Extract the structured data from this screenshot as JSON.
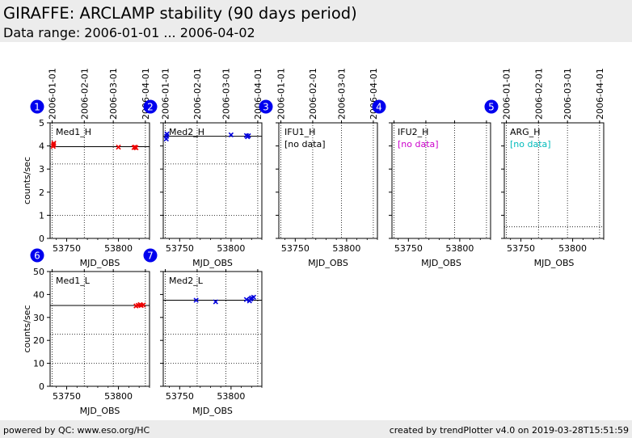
{
  "header": {
    "title": "GIRAFFE: ARCLAMP stability (90 days period)",
    "subtitle": "Data range: 2006-01-01 ... 2006-04-02"
  },
  "footer": {
    "left": "powered by QC: www.eso.org/HC",
    "right": "created by trendPlotter v4.0 on 2019-03-28T15:51:59"
  },
  "colors": {
    "header_bg": "#ececec",
    "badge": "#0000ee",
    "red": "#ee0000",
    "blue": "#0000dd",
    "magenta": "#cc00cc",
    "cyan": "#00bbbb"
  },
  "chart_data": [
    {
      "id": 1,
      "type": "scatter",
      "label": "Med1_H",
      "no_data": false,
      "color": "#ee0000",
      "xlim": [
        53734,
        53830
      ],
      "ylim": [
        0,
        5
      ],
      "xticks": [
        53750,
        53800
      ],
      "yticks": [
        0,
        1,
        2,
        3,
        4,
        5
      ],
      "ylabel": "counts/sec",
      "xlabel": "MJD_OBS",
      "date_ticks": [
        "2006-01-01",
        "2006-02-01",
        "2006-03-01",
        "2006-04-01"
      ],
      "reference_line": 3.97,
      "dotted_lines": [
        1.0,
        3.22
      ],
      "points": [
        [
          53737,
          3.98
        ],
        [
          53737.3,
          4.05
        ],
        [
          53737.6,
          4.12
        ],
        [
          53800,
          3.95
        ],
        [
          53815,
          3.93
        ],
        [
          53816,
          3.95
        ],
        [
          53817,
          3.92
        ]
      ]
    },
    {
      "id": 2,
      "type": "scatter",
      "label": "Med2_H",
      "no_data": false,
      "color": "#0000dd",
      "xlim": [
        53734,
        53830
      ],
      "ylim": [
        0,
        5
      ],
      "xticks": [
        53750,
        53800
      ],
      "yticks": [
        0,
        1,
        2,
        3,
        4,
        5
      ],
      "ylabel": "",
      "xlabel": "MJD_OBS",
      "date_ticks": [
        "2006-01-01",
        "2006-02-01",
        "2006-03-01",
        "2006-04-01"
      ],
      "reference_line": 4.42,
      "dotted_lines": [
        1.0,
        3.22
      ],
      "points": [
        [
          53737,
          4.3
        ],
        [
          53737.3,
          4.42
        ],
        [
          53737.6,
          4.52
        ],
        [
          53800,
          4.48
        ],
        [
          53815,
          4.45
        ],
        [
          53816,
          4.4
        ],
        [
          53817,
          4.44
        ]
      ]
    },
    {
      "id": 3,
      "type": "scatter",
      "label": "IFU1_H",
      "no_data": true,
      "no_data_text": "[no data]",
      "color": "#000000",
      "xlim": [
        53734,
        53830
      ],
      "ylim": [
        0,
        5
      ],
      "xticks": [
        53750,
        53800
      ],
      "yticks": [
        0,
        1,
        2,
        3,
        4,
        5
      ],
      "ylabel": "",
      "xlabel": "MJD_OBS",
      "date_ticks": [
        "2006-01-01",
        "2006-02-01",
        "2006-03-01",
        "2006-04-01"
      ],
      "reference_line": null,
      "dotted_lines": [],
      "points": []
    },
    {
      "id": 4,
      "type": "scatter",
      "label": "IFU2_H",
      "no_data": true,
      "no_data_text": "[no data]",
      "color": "#cc00cc",
      "xlim": [
        53734,
        53830
      ],
      "ylim": [
        0,
        5
      ],
      "xticks": [
        53750,
        53800
      ],
      "yticks": [
        0,
        1,
        2,
        3,
        4,
        5
      ],
      "ylabel": "",
      "xlabel": "MJD_OBS",
      "date_ticks": [],
      "reference_line": null,
      "dotted_lines": [],
      "points": []
    },
    {
      "id": 5,
      "type": "scatter",
      "label": "ARG_H",
      "no_data": true,
      "no_data_text": "[no data]",
      "color": "#00bbbb",
      "xlim": [
        53734,
        53830
      ],
      "ylim": [
        0,
        5
      ],
      "xticks": [
        53750,
        53800
      ],
      "yticks": [
        0,
        1,
        2,
        3,
        4,
        5
      ],
      "ylabel": "",
      "xlabel": "MJD_OBS",
      "date_ticks": [
        "2006-01-01",
        "2006-02-01",
        "2006-03-01",
        "2006-04-01"
      ],
      "reference_line": null,
      "dotted_lines": [
        0.5
      ],
      "points": []
    },
    {
      "id": 6,
      "type": "scatter",
      "label": "Med1_L",
      "no_data": false,
      "color": "#ee0000",
      "xlim": [
        53734,
        53830
      ],
      "ylim": [
        0,
        50
      ],
      "xticks": [
        53750,
        53800
      ],
      "yticks": [
        0,
        10,
        20,
        30,
        40,
        50
      ],
      "ylabel": "counts/sec",
      "xlabel": "MJD_OBS",
      "date_ticks": [],
      "reference_line": 35.2,
      "dotted_lines": [
        10.0,
        22.7
      ],
      "points": [
        [
          53817,
          35.0
        ],
        [
          53819,
          35.3
        ],
        [
          53821,
          35.6
        ],
        [
          53822,
          35.2
        ],
        [
          53824,
          35.4
        ]
      ]
    },
    {
      "id": 7,
      "type": "scatter",
      "label": "Med2_L",
      "no_data": false,
      "color": "#0000dd",
      "xlim": [
        53734,
        53830
      ],
      "ylim": [
        0,
        50
      ],
      "xticks": [
        53750,
        53800
      ],
      "yticks": [
        0,
        10,
        20,
        30,
        40,
        50
      ],
      "ylabel": "",
      "xlabel": "MJD_OBS",
      "date_ticks": [],
      "reference_line": 37.5,
      "dotted_lines": [
        10.0,
        22.7
      ],
      "points": [
        [
          53766,
          37.5
        ],
        [
          53785,
          36.8
        ],
        [
          53815,
          37.8
        ],
        [
          53818,
          37.2
        ],
        [
          53820,
          38.5
        ],
        [
          53822,
          38.8
        ],
        [
          53819,
          38.0
        ]
      ]
    }
  ]
}
